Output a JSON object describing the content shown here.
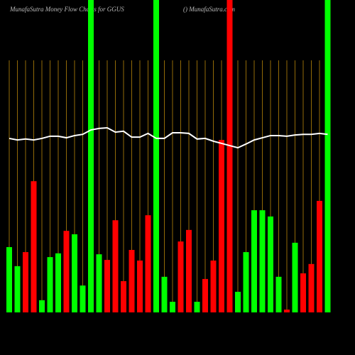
{
  "chart_data": {
    "type": "bar",
    "title": "MunafaSutra  Money Flow  Charts for GGUS",
    "subtitle": "() MunafaSutra.com",
    "ylim": [
      0,
      100
    ],
    "values": [
      20.9,
      14.8,
      19.3,
      42,
      3.9,
      17.7,
      18.9,
      26.1,
      25,
      8.6,
      100,
      18.6,
      16.8,
      29.5,
      10,
      20,
      16.6,
      31.1,
      100,
      11.4,
      3.4,
      22.7,
      26.4,
      3.4,
      10.7,
      16.6,
      55.2,
      100,
      6.6,
      19.3,
      32.7,
      32.7,
      30.7,
      11.4,
      0.9,
      22.3,
      12.5,
      15.5,
      35.7,
      100
    ],
    "colors": [
      "#00ff00",
      "#00ff00",
      "#ff0000",
      "#ff0000",
      "#00ff00",
      "#00ff00",
      "#00ff00",
      "#ff0000",
      "#00ff00",
      "#00ff00",
      "#00ff00",
      "#00ff00",
      "#ff0000",
      "#ff0000",
      "#ff0000",
      "#ff0000",
      "#ff0000",
      "#ff0000",
      "#00ff00",
      "#00ff00",
      "#00ff00",
      "#ff0000",
      "#ff0000",
      "#00ff00",
      "#ff0000",
      "#ff0000",
      "#ff0000",
      "#ff0000",
      "#00ff00",
      "#00ff00",
      "#00ff00",
      "#00ff00",
      "#00ff00",
      "#00ff00",
      "#ff0000",
      "#00ff00",
      "#ff0000",
      "#ff0000",
      "#ff0000",
      "#00ff00"
    ],
    "line": {
      "color": "#ffffff",
      "values": [
        55.7,
        55.2,
        55.5,
        55.2,
        55.7,
        56.4,
        56.4,
        55.9,
        56.6,
        57.0,
        58.4,
        58.9,
        59.1,
        57.7,
        58.0,
        56.1,
        56.1,
        57.3,
        55.7,
        55.7,
        57.5,
        57.5,
        57.3,
        55.5,
        55.7,
        54.8,
        54.1,
        53.4,
        52.7,
        53.9,
        55.2,
        55.9,
        56.6,
        56.6,
        56.4,
        56.8,
        57.0,
        57.0,
        57.3,
        57.0
      ]
    },
    "gridline_color": "#b8860b"
  }
}
